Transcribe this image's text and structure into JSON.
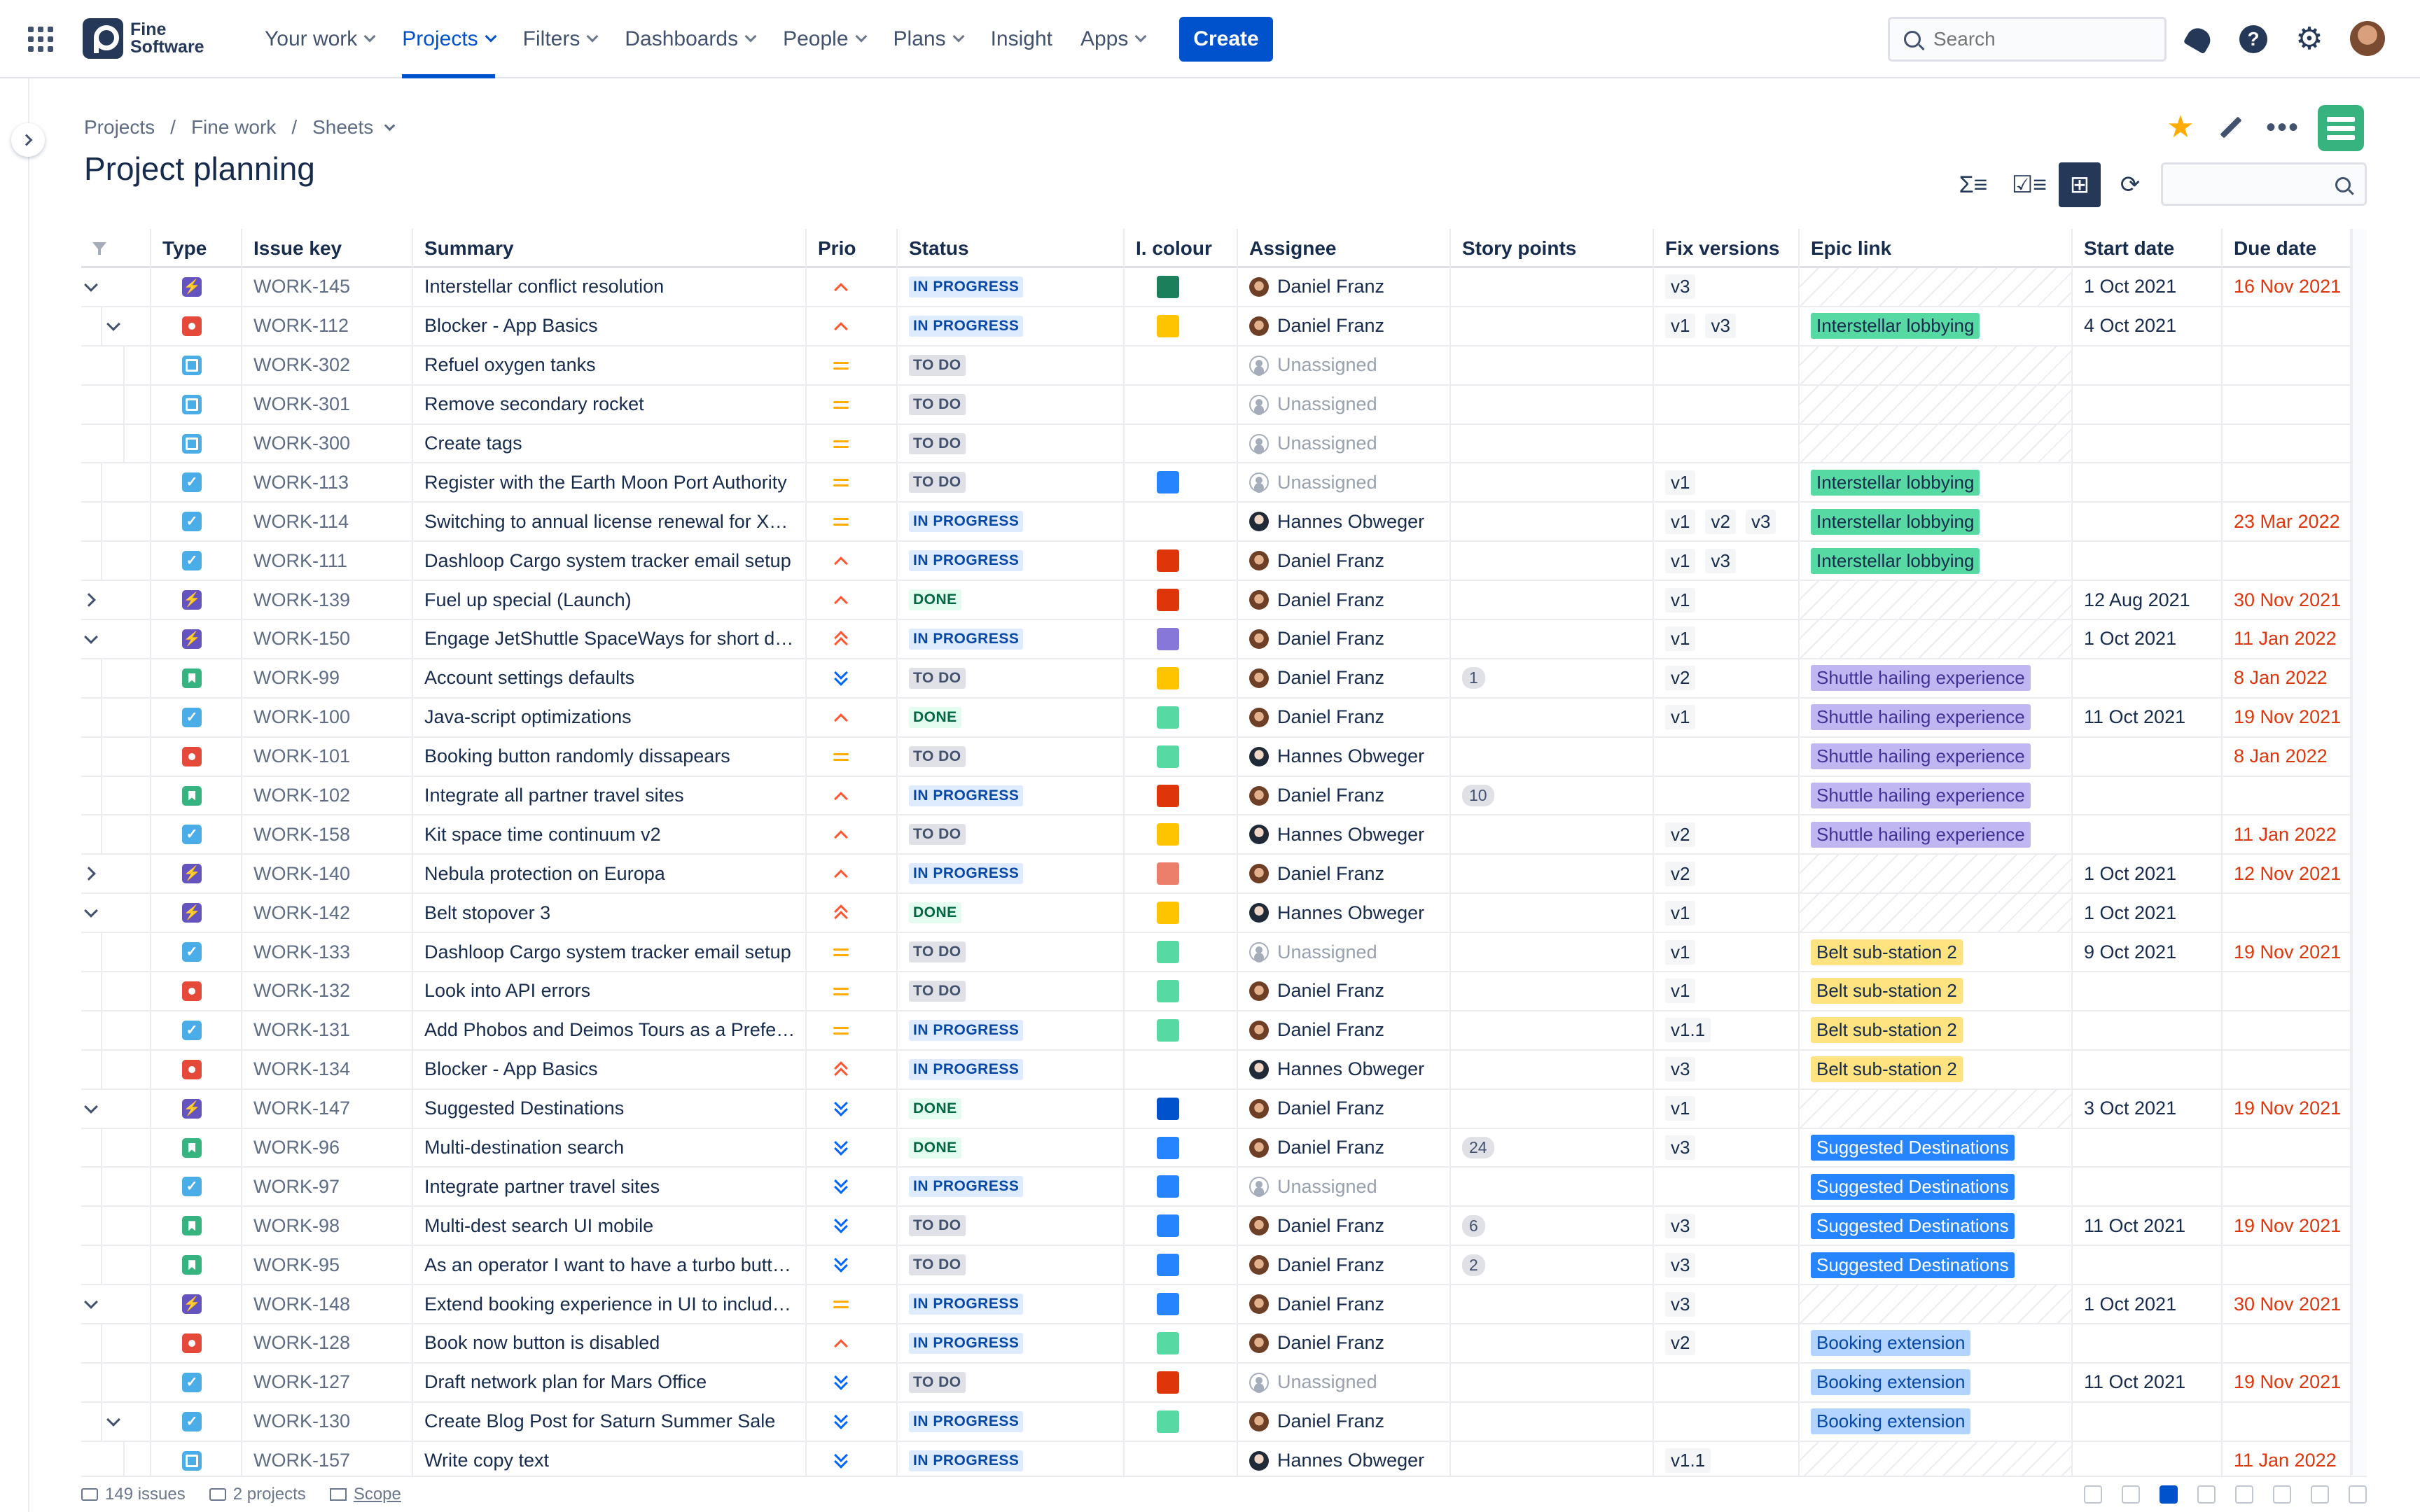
{
  "nav": {
    "logo_line1": "Fine",
    "logo_line2": "Software",
    "items": [
      {
        "label": "Your work",
        "caret": true
      },
      {
        "label": "Projects",
        "caret": true,
        "active": true
      },
      {
        "label": "Filters",
        "caret": true
      },
      {
        "label": "Dashboards",
        "caret": true
      },
      {
        "label": "People",
        "caret": true
      },
      {
        "label": "Plans",
        "caret": true
      },
      {
        "label": "Insight",
        "caret": false
      },
      {
        "label": "Apps",
        "caret": true
      }
    ],
    "create_label": "Create",
    "search_placeholder": "Search",
    "accent": "#0052cc"
  },
  "breadcrumb": {
    "projects": "Projects",
    "project": "Fine work",
    "section": "Sheets"
  },
  "page_title": "Project planning",
  "toolbar": {
    "icons": [
      "sum-rows-icon",
      "checklist-icon",
      "hierarchy-icon",
      "refresh-icon"
    ]
  },
  "columns": {
    "type": "Type",
    "key": "Issue key",
    "summary": "Summary",
    "prio": "Prio",
    "status": "Status",
    "colour": "I. colour",
    "assignee": "Assignee",
    "points": "Story points",
    "fix": "Fix versions",
    "epic": "Epic link",
    "start": "Start date",
    "due": "Due date"
  },
  "epic_colors": {
    "Interstellar lobbying": {
      "bg": "#57d9a3",
      "fg": "#172b4d"
    },
    "Shuttle hailing experience": {
      "bg": "#c0b6f2",
      "fg": "#403294"
    },
    "Belt sub-station 2": {
      "bg": "#ffe380",
      "fg": "#172b4d"
    },
    "Suggested Destinations": {
      "bg": "#2684ff",
      "fg": "#ffffff"
    },
    "Booking extension": {
      "bg": "#b3d4ff",
      "fg": "#0747a6"
    }
  },
  "rows": [
    {
      "level": 0,
      "exp": "down",
      "type": "epic",
      "key": "WORK-145",
      "summary": "Interstellar conflict resolution",
      "prio": "high",
      "status": "IN PROGRESS",
      "colour": "#1a7f5a",
      "assignee": "Daniel Franz",
      "points": "",
      "fix": [
        "v3"
      ],
      "epic": "",
      "start": "1 Oct 2021",
      "due": "16 Nov 2021"
    },
    {
      "level": 1,
      "exp": "down",
      "type": "bug",
      "key": "WORK-112",
      "summary": "Blocker - App Basics",
      "prio": "high",
      "status": "IN PROGRESS",
      "colour": "#ffc400",
      "assignee": "Daniel Franz",
      "points": "",
      "fix": [
        "v1",
        "v3"
      ],
      "epic": "Interstellar lobbying",
      "start": "4 Oct 2021",
      "due": ""
    },
    {
      "level": 2,
      "exp": "",
      "type": "subtask",
      "key": "WORK-302",
      "summary": "Refuel oxygen tanks",
      "prio": "medium",
      "status": "TO DO",
      "colour": "",
      "assignee": "",
      "points": "",
      "fix": [],
      "epic": "",
      "start": "",
      "due": ""
    },
    {
      "level": 2,
      "exp": "",
      "type": "subtask",
      "key": "WORK-301",
      "summary": "Remove secondary rocket",
      "prio": "medium",
      "status": "TO DO",
      "colour": "",
      "assignee": "",
      "points": "",
      "fix": [],
      "epic": "",
      "start": "",
      "due": ""
    },
    {
      "level": 2,
      "exp": "",
      "type": "subtask",
      "key": "WORK-300",
      "summary": "Create tags",
      "prio": "medium",
      "status": "TO DO",
      "colour": "",
      "assignee": "",
      "points": "",
      "fix": [],
      "epic": "",
      "start": "",
      "due": ""
    },
    {
      "level": 1,
      "exp": "",
      "type": "task",
      "key": "WORK-113",
      "summary": "Register with the Earth Moon Port Authority",
      "prio": "medium",
      "status": "TO DO",
      "colour": "#2684ff",
      "assignee": "",
      "points": "",
      "fix": [
        "v1"
      ],
      "epic": "Interstellar lobbying",
      "start": "",
      "due": ""
    },
    {
      "level": 1,
      "exp": "",
      "type": "task",
      "key": "WORK-114",
      "summary": "Switching to annual license renewal for X…",
      "prio": "medium",
      "status": "IN PROGRESS",
      "colour": "",
      "assignee": "Hannes Obweger",
      "points": "",
      "fix": [
        "v1",
        "v2",
        "v3"
      ],
      "epic": "Interstellar lobbying",
      "start": "",
      "due": "23 Mar 2022"
    },
    {
      "level": 1,
      "exp": "",
      "type": "task",
      "key": "WORK-111",
      "summary": "Dashloop Cargo system tracker email setup",
      "prio": "high",
      "status": "IN PROGRESS",
      "colour": "#de350b",
      "assignee": "Daniel Franz",
      "points": "",
      "fix": [
        "v1",
        "v3"
      ],
      "epic": "Interstellar lobbying",
      "start": "",
      "due": ""
    },
    {
      "level": 0,
      "exp": "right",
      "type": "epic",
      "key": "WORK-139",
      "summary": "Fuel up special (Launch)",
      "prio": "high",
      "status": "DONE",
      "colour": "#de350b",
      "assignee": "Daniel Franz",
      "points": "",
      "fix": [
        "v1"
      ],
      "epic": "",
      "start": "12 Aug 2021",
      "due": "30 Nov 2021"
    },
    {
      "level": 0,
      "exp": "down",
      "type": "epic",
      "key": "WORK-150",
      "summary": "Engage JetShuttle SpaceWays for short d…",
      "prio": "highest",
      "status": "IN PROGRESS",
      "colour": "#8777d9",
      "assignee": "Daniel Franz",
      "points": "",
      "fix": [
        "v1"
      ],
      "epic": "",
      "start": "1 Oct 2021",
      "due": "11 Jan 2022"
    },
    {
      "level": 1,
      "exp": "",
      "type": "story",
      "key": "WORK-99",
      "summary": "Account settings defaults",
      "prio": "lowest",
      "status": "TO DO",
      "colour": "#ffc400",
      "assignee": "Daniel Franz",
      "points": "1",
      "fix": [
        "v2"
      ],
      "epic": "Shuttle hailing experience",
      "start": "",
      "due": "8 Jan 2022"
    },
    {
      "level": 1,
      "exp": "",
      "type": "task",
      "key": "WORK-100",
      "summary": "Java-script optimizations",
      "prio": "high",
      "status": "DONE",
      "colour": "#57d9a3",
      "assignee": "Daniel Franz",
      "points": "",
      "fix": [
        "v1"
      ],
      "epic": "Shuttle hailing experience",
      "start": "11 Oct 2021",
      "due": "19 Nov 2021"
    },
    {
      "level": 1,
      "exp": "",
      "type": "bug",
      "key": "WORK-101",
      "summary": "Booking button randomly dissapears",
      "prio": "medium",
      "status": "TO DO",
      "colour": "#57d9a3",
      "assignee": "Hannes Obweger",
      "points": "",
      "fix": [],
      "epic": "Shuttle hailing experience",
      "start": "",
      "due": "8 Jan 2022"
    },
    {
      "level": 1,
      "exp": "",
      "type": "story",
      "key": "WORK-102",
      "summary": "Integrate all partner travel sites",
      "prio": "high",
      "status": "IN PROGRESS",
      "colour": "#de350b",
      "assignee": "Daniel Franz",
      "points": "10",
      "fix": [],
      "epic": "Shuttle hailing experience",
      "start": "",
      "due": ""
    },
    {
      "level": 1,
      "exp": "",
      "type": "task",
      "key": "WORK-158",
      "summary": "Kit space time continuum v2",
      "prio": "high",
      "status": "TO DO",
      "colour": "#ffc400",
      "assignee": "Hannes Obweger",
      "points": "",
      "fix": [
        "v2"
      ],
      "epic": "Shuttle hailing experience",
      "start": "",
      "due": "11 Jan 2022"
    },
    {
      "level": 0,
      "exp": "right",
      "type": "epic",
      "key": "WORK-140",
      "summary": "Nebula protection on Europa",
      "prio": "high",
      "status": "IN PROGRESS",
      "colour": "#eb7f6c",
      "assignee": "Daniel Franz",
      "points": "",
      "fix": [
        "v2"
      ],
      "epic": "",
      "start": "1 Oct 2021",
      "due": "12 Nov 2021"
    },
    {
      "level": 0,
      "exp": "down",
      "type": "epic",
      "key": "WORK-142",
      "summary": "Belt stopover 3",
      "prio": "highest",
      "status": "DONE",
      "colour": "#ffc400",
      "assignee": "Hannes Obweger",
      "points": "",
      "fix": [
        "v1"
      ],
      "epic": "",
      "start": "1 Oct 2021",
      "due": ""
    },
    {
      "level": 1,
      "exp": "",
      "type": "task",
      "key": "WORK-133",
      "summary": "Dashloop Cargo system tracker email setup",
      "prio": "medium",
      "status": "TO DO",
      "colour": "#57d9a3",
      "assignee": "",
      "points": "",
      "fix": [
        "v1"
      ],
      "epic": "Belt sub-station 2",
      "start": "9 Oct 2021",
      "due": "19 Nov 2021"
    },
    {
      "level": 1,
      "exp": "",
      "type": "bug",
      "key": "WORK-132",
      "summary": "Look into API errors",
      "prio": "medium",
      "status": "TO DO",
      "colour": "#57d9a3",
      "assignee": "Daniel Franz",
      "points": "",
      "fix": [
        "v1"
      ],
      "epic": "Belt sub-station 2",
      "start": "",
      "due": ""
    },
    {
      "level": 1,
      "exp": "",
      "type": "task",
      "key": "WORK-131",
      "summary": "Add Phobos and Deimos Tours as a Prefe…",
      "prio": "medium",
      "status": "IN PROGRESS",
      "colour": "#57d9a3",
      "assignee": "Daniel Franz",
      "points": "",
      "fix": [
        "v1.1"
      ],
      "epic": "Belt sub-station 2",
      "start": "",
      "due": ""
    },
    {
      "level": 1,
      "exp": "",
      "type": "bug",
      "key": "WORK-134",
      "summary": "Blocker - App Basics",
      "prio": "highest",
      "status": "IN PROGRESS",
      "colour": "",
      "assignee": "Hannes Obweger",
      "points": "",
      "fix": [
        "v3"
      ],
      "epic": "Belt sub-station 2",
      "start": "",
      "due": ""
    },
    {
      "level": 0,
      "exp": "down",
      "type": "epic",
      "key": "WORK-147",
      "summary": "Suggested Destinations",
      "prio": "lowest",
      "status": "DONE",
      "colour": "#0052cc",
      "assignee": "Daniel Franz",
      "points": "",
      "fix": [
        "v1"
      ],
      "epic": "",
      "start": "3 Oct 2021",
      "due": "19 Nov 2021"
    },
    {
      "level": 1,
      "exp": "",
      "type": "story",
      "key": "WORK-96",
      "summary": "Multi-destination search",
      "prio": "lowest",
      "status": "DONE",
      "colour": "#2684ff",
      "assignee": "Daniel Franz",
      "points": "24",
      "fix": [
        "v3"
      ],
      "epic": "Suggested Destinations",
      "start": "",
      "due": ""
    },
    {
      "level": 1,
      "exp": "",
      "type": "task",
      "key": "WORK-97",
      "summary": "Integrate partner travel sites",
      "prio": "lowest",
      "status": "IN PROGRESS",
      "colour": "#2684ff",
      "assignee": "",
      "points": "",
      "fix": [],
      "epic": "Suggested Destinations",
      "start": "",
      "due": ""
    },
    {
      "level": 1,
      "exp": "",
      "type": "story",
      "key": "WORK-98",
      "summary": "Multi-dest search UI mobile",
      "prio": "lowest",
      "status": "TO DO",
      "colour": "#2684ff",
      "assignee": "Daniel Franz",
      "points": "6",
      "fix": [
        "v3"
      ],
      "epic": "Suggested Destinations",
      "start": "11 Oct 2021",
      "due": "19 Nov 2021"
    },
    {
      "level": 1,
      "exp": "",
      "type": "story",
      "key": "WORK-95",
      "summary": "As an operator I want to have a turbo butt…",
      "prio": "lowest",
      "status": "TO DO",
      "colour": "#2684ff",
      "assignee": "Daniel Franz",
      "points": "2",
      "fix": [
        "v3"
      ],
      "epic": "Suggested Destinations",
      "start": "",
      "due": ""
    },
    {
      "level": 0,
      "exp": "down",
      "type": "epic",
      "key": "WORK-148",
      "summary": "Extend booking experience in UI to includ…",
      "prio": "medium",
      "status": "IN PROGRESS",
      "colour": "#2684ff",
      "assignee": "Daniel Franz",
      "points": "",
      "fix": [
        "v3"
      ],
      "epic": "",
      "start": "1 Oct 2021",
      "due": "30 Nov 2021"
    },
    {
      "level": 1,
      "exp": "",
      "type": "bug",
      "key": "WORK-128",
      "summary": "Book now button is disabled",
      "prio": "high",
      "status": "IN PROGRESS",
      "colour": "#57d9a3",
      "assignee": "Daniel Franz",
      "points": "",
      "fix": [
        "v2"
      ],
      "epic": "Booking extension",
      "start": "",
      "due": ""
    },
    {
      "level": 1,
      "exp": "",
      "type": "task",
      "key": "WORK-127",
      "summary": "Draft network plan for Mars Office",
      "prio": "lowest",
      "status": "TO DO",
      "colour": "#de350b",
      "assignee": "",
      "points": "",
      "fix": [],
      "epic": "Booking extension",
      "start": "11 Oct 2021",
      "due": "19 Nov 2021"
    },
    {
      "level": 1,
      "exp": "down",
      "type": "task",
      "key": "WORK-130",
      "summary": "Create Blog Post for Saturn Summer Sale",
      "prio": "lowest",
      "status": "IN PROGRESS",
      "colour": "#57d9a3",
      "assignee": "Daniel Franz",
      "points": "",
      "fix": [],
      "epic": "Booking extension",
      "start": "",
      "due": ""
    },
    {
      "level": 2,
      "exp": "",
      "type": "subtask",
      "key": "WORK-157",
      "summary": "Write copy text",
      "prio": "lowest",
      "status": "IN PROGRESS",
      "colour": "",
      "assignee": "Hannes Obweger",
      "points": "",
      "fix": [
        "v1.1"
      ],
      "epic": "",
      "start": "",
      "due": "11 Jan 2022"
    }
  ],
  "unassigned_label": "Unassigned",
  "footer": {
    "issues": "149 issues",
    "projects": "2 projects",
    "scope": "Scope"
  }
}
